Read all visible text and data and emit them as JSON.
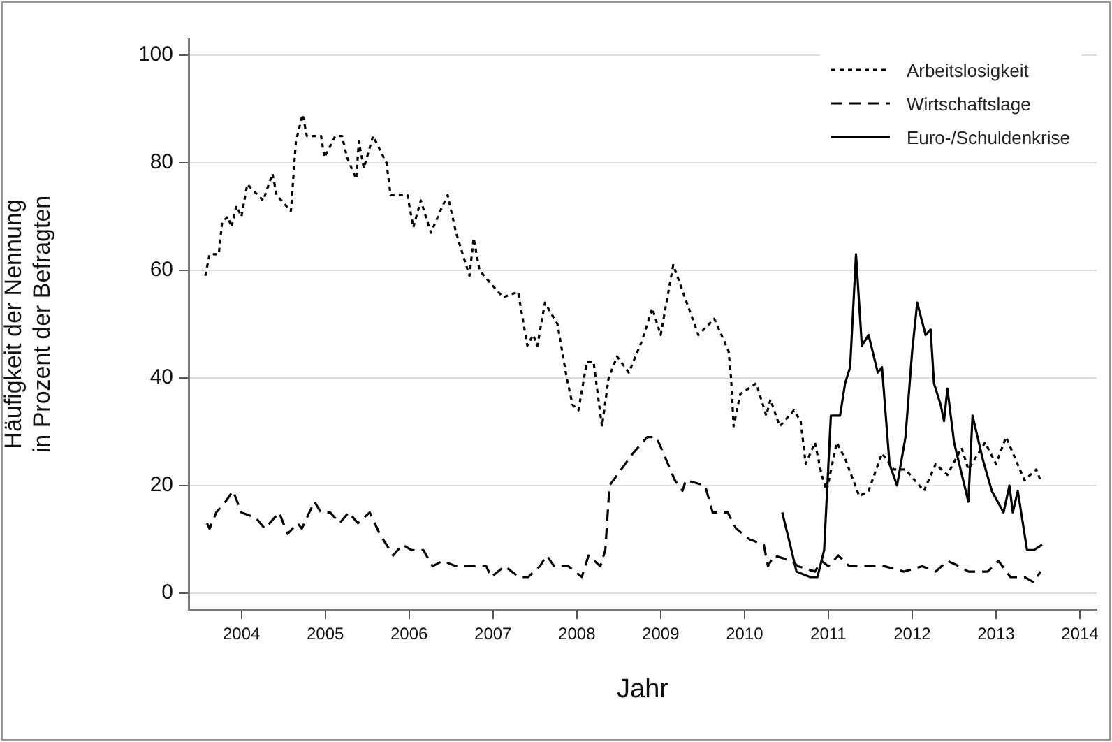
{
  "chart_data": {
    "type": "line",
    "xlabel": "Jahr",
    "ylabel": "Häufigkeit der Nennung\nin Prozent der Befragten",
    "xlim": [
      2003.37,
      2014.2
    ],
    "xticks": [
      2004,
      2005,
      2006,
      2007,
      2008,
      2009,
      2010,
      2011,
      2012,
      2013,
      2014
    ],
    "ylim": [
      -3,
      103
    ],
    "yticks": [
      0,
      20,
      40,
      60,
      80,
      100
    ],
    "grid": "y",
    "legend": "top right",
    "marker": "none",
    "series": [
      {
        "name": "Arbeitslosigkeit",
        "color": "#000000",
        "line_style": "dotted",
        "x": [
          2003.57,
          2003.62,
          2003.73,
          2003.77,
          2003.84,
          2003.88,
          2003.94,
          2004.0,
          2004.07,
          2004.26,
          2004.37,
          2004.42,
          2004.59,
          2004.65,
          2004.73,
          2004.78,
          2004.95,
          2004.99,
          2005.12,
          2005.2,
          2005.26,
          2005.37,
          2005.4,
          2005.46,
          2005.57,
          2005.73,
          2005.78,
          2005.98,
          2006.05,
          2006.14,
          2006.26,
          2006.37,
          2006.46,
          2006.56,
          2006.72,
          2006.77,
          2006.84,
          2006.95,
          2007.12,
          2007.3,
          2007.41,
          2007.48,
          2007.53,
          2007.62,
          2007.77,
          2007.88,
          2007.95,
          2008.02,
          2008.12,
          2008.2,
          2008.3,
          2008.38,
          2008.48,
          2008.62,
          2008.78,
          2008.9,
          2009.0,
          2009.15,
          2009.45,
          2009.64,
          2009.81,
          2009.84,
          2009.87,
          2009.95,
          2010.14,
          2010.26,
          2010.31,
          2010.42,
          2010.59,
          2010.67,
          2010.73,
          2010.84,
          2010.92,
          2010.98,
          2011.1,
          2011.2,
          2011.37,
          2011.48,
          2011.64,
          2011.78,
          2011.92,
          2012.14,
          2012.28,
          2012.42,
          2012.59,
          2012.67,
          2012.87,
          2013.0,
          2013.12,
          2013.34,
          2013.48,
          2013.53
        ],
        "values": [
          59,
          63,
          63,
          69,
          70,
          68,
          72,
          70,
          76,
          73,
          78,
          74,
          71,
          84,
          89,
          85,
          85,
          81,
          85,
          85,
          81,
          77,
          84,
          79,
          85,
          80,
          74,
          74,
          68,
          73,
          67,
          71,
          74,
          67,
          59,
          66,
          60,
          58,
          55,
          56,
          46,
          48,
          46,
          54,
          50,
          40,
          35,
          34,
          43,
          43,
          31,
          40,
          44,
          41,
          47,
          53,
          48,
          61,
          48,
          51,
          45,
          40,
          31,
          37,
          39,
          33,
          36,
          31,
          34,
          32,
          24,
          28,
          22,
          19,
          28,
          25,
          18,
          19,
          26,
          23,
          23,
          19,
          24,
          22,
          27,
          23,
          28,
          24,
          29,
          21,
          23,
          21
        ]
      },
      {
        "name": "Wirtschaftslage",
        "color": "#000000",
        "line_style": "dashed",
        "x": [
          2003.59,
          2003.62,
          2003.7,
          2003.81,
          2003.9,
          2004.0,
          2004.17,
          2004.28,
          2004.45,
          2004.55,
          2004.67,
          2004.72,
          2004.87,
          2004.95,
          2005.06,
          2005.17,
          2005.28,
          2005.39,
          2005.53,
          2005.65,
          2005.73,
          2005.81,
          2005.92,
          2006.03,
          2006.17,
          2006.28,
          2006.4,
          2006.56,
          2006.67,
          2006.92,
          2006.98,
          2007.14,
          2007.31,
          2007.42,
          2007.56,
          2007.64,
          2007.73,
          2007.9,
          2008.06,
          2008.14,
          2008.28,
          2008.34,
          2008.39,
          2008.53,
          2008.67,
          2008.84,
          2008.95,
          2009.06,
          2009.17,
          2009.26,
          2009.3,
          2009.53,
          2009.62,
          2009.7,
          2009.8,
          2009.9,
          2010.06,
          2010.23,
          2010.28,
          2010.35,
          2010.56,
          2010.64,
          2010.84,
          2010.92,
          2011.0,
          2011.12,
          2011.25,
          2011.45,
          2011.67,
          2011.9,
          2012.12,
          2012.28,
          2012.42,
          2012.56,
          2012.67,
          2012.9,
          2013.03,
          2013.17,
          2013.34,
          2013.45,
          2013.53
        ],
        "values": [
          13,
          12,
          15,
          17,
          19,
          15,
          14,
          12,
          15,
          11,
          13,
          12,
          17,
          15,
          15,
          13,
          15,
          13,
          15,
          11,
          9,
          7,
          9,
          8,
          8,
          5,
          6,
          5,
          5,
          5,
          3,
          5,
          3,
          3,
          5,
          7,
          5,
          5,
          3,
          7,
          5,
          8,
          20,
          23,
          26,
          29,
          29,
          25,
          21,
          19,
          21,
          20,
          15,
          15,
          15,
          12,
          10,
          9,
          5,
          7,
          6,
          5,
          4,
          6,
          5,
          7,
          5,
          5,
          5,
          4,
          5,
          4,
          6,
          5,
          4,
          4,
          6,
          3,
          3,
          2,
          4
        ]
      },
      {
        "name": "Euro-/Schuldenkrise",
        "color": "#000000",
        "line_style": "solid",
        "x": [
          2010.45,
          2010.56,
          2010.62,
          2010.78,
          2010.87,
          2010.95,
          2011.03,
          2011.14,
          2011.2,
          2011.26,
          2011.33,
          2011.4,
          2011.48,
          2011.59,
          2011.64,
          2011.73,
          2011.82,
          2011.92,
          2012.0,
          2012.06,
          2012.16,
          2012.22,
          2012.26,
          2012.34,
          2012.38,
          2012.42,
          2012.5,
          2012.67,
          2012.72,
          2012.84,
          2012.95,
          2013.09,
          2013.16,
          2013.2,
          2013.26,
          2013.34,
          2013.37,
          2013.45,
          2013.55
        ],
        "values": [
          15,
          8,
          4,
          3,
          3,
          8,
          33,
          33,
          39,
          42,
          63,
          46,
          48,
          41,
          42,
          24,
          20,
          29,
          45,
          54,
          48,
          49,
          39,
          35,
          32,
          38,
          28,
          17,
          33,
          25,
          19,
          15,
          20,
          15,
          19,
          11,
          8,
          8,
          9
        ]
      }
    ]
  }
}
